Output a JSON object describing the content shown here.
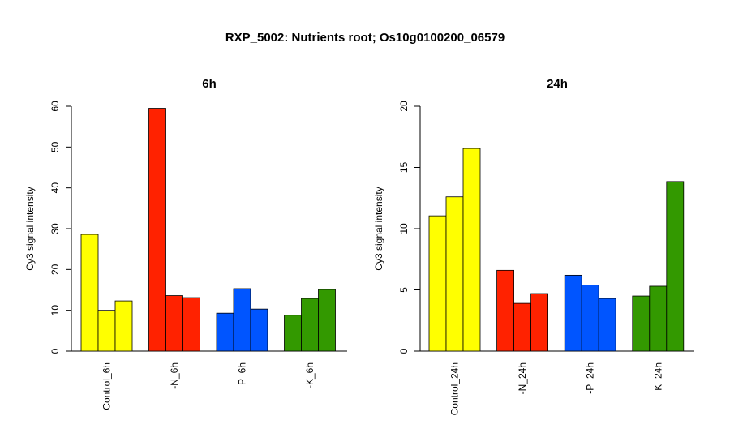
{
  "title": "RXP_5002: Nutrients root; Os10g0100200_06579",
  "colors": {
    "control": "#ffff00",
    "N": "#ff2200",
    "P": "#0055ff",
    "K": "#339900"
  },
  "chart_data": [
    {
      "type": "bar",
      "title": "6h",
      "ylabel": "Cy3 signal intensity",
      "ylim": [
        0,
        60
      ],
      "yticks": [
        "0",
        "10",
        "20",
        "30",
        "40",
        "50",
        "60"
      ],
      "categories": [
        "Control_6h",
        "-N_6h",
        "-P_6h",
        "-K_6h"
      ],
      "values": [
        [
          28.6,
          10.0,
          12.3
        ],
        [
          59.5,
          13.6,
          13.1
        ],
        [
          9.3,
          15.3,
          10.3
        ],
        [
          8.8,
          12.9,
          15.1
        ]
      ]
    },
    {
      "type": "bar",
      "title": "24h",
      "ylabel": "Cy3 signal intensity",
      "ylim": [
        0,
        20
      ],
      "yticks": [
        "0",
        "5",
        "10",
        "15",
        "20"
      ],
      "categories": [
        "Control_24h",
        "-N_24h",
        "-P_24h",
        "-K_24h"
      ],
      "values": [
        [
          11.05,
          12.6,
          16.55
        ],
        [
          6.6,
          3.9,
          4.7
        ],
        [
          6.2,
          5.4,
          4.3
        ],
        [
          4.5,
          5.3,
          13.85
        ]
      ]
    }
  ]
}
